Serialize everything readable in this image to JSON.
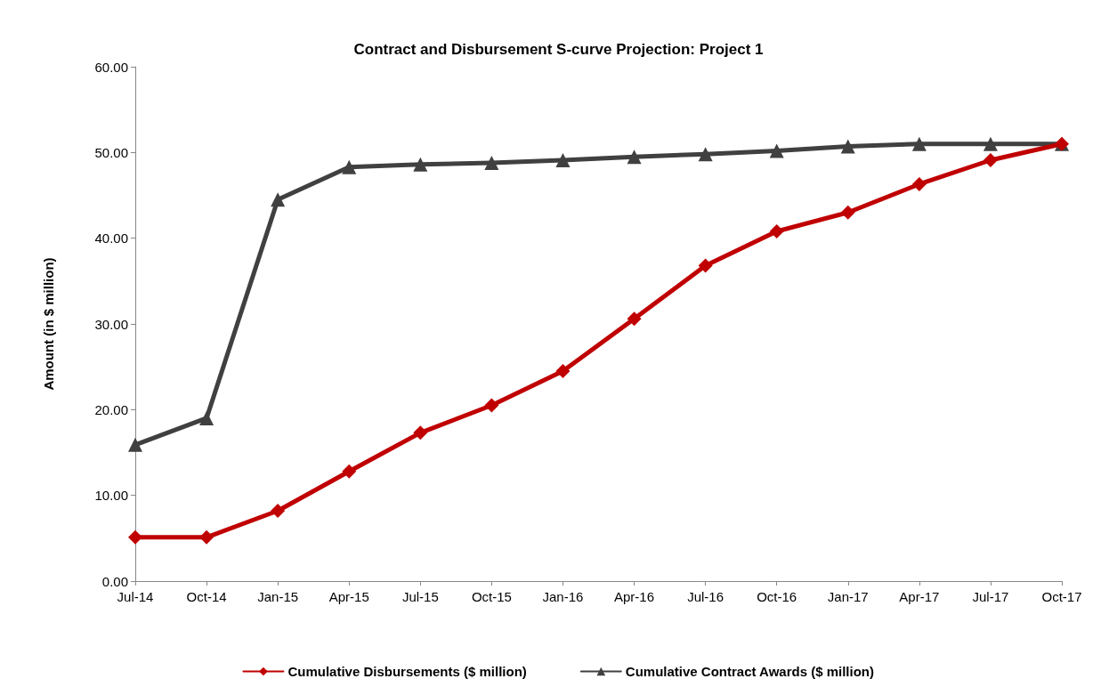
{
  "chart_data": {
    "type": "line",
    "title": "Contract and Disbursement S-curve Projection: Project 1",
    "ylabel": "Amount (in $ million)",
    "categories": [
      "Jul-14",
      "Oct-14",
      "Jan-15",
      "Apr-15",
      "Jul-15",
      "Oct-15",
      "Jan-16",
      "Apr-16",
      "Jul-16",
      "Oct-16",
      "Jan-17",
      "Apr-17",
      "Jul-17",
      "Oct-17"
    ],
    "series": [
      {
        "name": "Cumulative Disbursements ($ million)",
        "color": "#c00000",
        "marker": "diamond",
        "values": [
          5.1,
          5.1,
          8.2,
          12.8,
          17.3,
          20.5,
          24.5,
          30.6,
          36.8,
          40.8,
          43.0,
          46.3,
          49.1,
          51.0
        ]
      },
      {
        "name": "Cumulative Contract Awards ($ million)",
        "color": "#404040",
        "marker": "triangle",
        "values": [
          15.9,
          19.0,
          44.5,
          48.3,
          48.6,
          48.8,
          49.1,
          49.5,
          49.8,
          50.2,
          50.7,
          51.0,
          51.0,
          51.0
        ]
      }
    ],
    "ylim": [
      0,
      60
    ],
    "yticks": [
      {
        "value": 0,
        "label": "0.00"
      },
      {
        "value": 10,
        "label": "10.00"
      },
      {
        "value": 20,
        "label": "20.00"
      },
      {
        "value": 30,
        "label": "30.00"
      },
      {
        "value": 40,
        "label": "40.00"
      },
      {
        "value": 50,
        "label": "50.00"
      },
      {
        "value": 60,
        "label": "60.00"
      }
    ],
    "grid": false,
    "legend": "bottom",
    "line_style": "solid"
  }
}
